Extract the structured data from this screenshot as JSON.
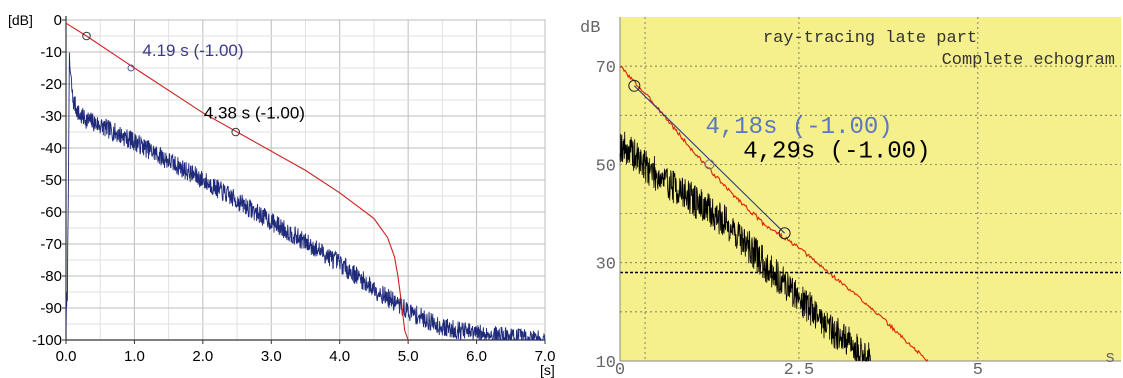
{
  "chart_data": [
    {
      "type": "line",
      "ylabel": "[dB]",
      "xlabel": "[s]",
      "xlim": [
        0,
        7
      ],
      "ylim": [
        -100,
        0
      ],
      "x_ticks": [
        "0.0",
        "1.0",
        "2.0",
        "3.0",
        "4.0",
        "5.0",
        "6.0",
        "7.0"
      ],
      "y_ticks": [
        "0",
        "-10",
        "-20",
        "-30",
        "-40",
        "-50",
        "-60",
        "-70",
        "-80",
        "-90",
        "-100"
      ],
      "grid": true,
      "series": [
        {
          "color": "#cc2222",
          "x": [
            0,
            0.3,
            1.0,
            2.0,
            2.5,
            3.5,
            4.0,
            4.5,
            4.7,
            4.8,
            4.85,
            4.9,
            4.95,
            5.0
          ],
          "y": [
            -1,
            -5,
            -15,
            -29,
            -35,
            -47,
            -54,
            -62,
            -68,
            -74,
            -80,
            -88,
            -97,
            -100
          ]
        },
        {
          "color": "#1f2a7a",
          "x": [
            0,
            0.02,
            0.05,
            0.1,
            0.2,
            0.5,
            1,
            2,
            3,
            4,
            4.5,
            5,
            5.5,
            6,
            6.5,
            7
          ],
          "y": [
            -95,
            -85,
            -13,
            -25,
            -30,
            -33,
            -38,
            -50,
            -63,
            -76,
            -84,
            -91,
            -96,
            -98,
            -99,
            -100
          ]
        }
      ],
      "markers": [
        {
          "x": 0.3,
          "y": -5
        },
        {
          "x": 0.95,
          "y": -15
        },
        {
          "x": 2.48,
          "y": -35
        }
      ],
      "annotations": [
        {
          "text": "4.19 s (-1.00)",
          "color": "#3a3a8a",
          "x": 1.0,
          "y": -10
        },
        {
          "text": "4.38 s (-1.00)",
          "color": "#000000",
          "x": 2.0,
          "y": -27
        }
      ]
    },
    {
      "type": "line",
      "ylabel": "dB",
      "xlabel": "s",
      "title": "ray-tracing late part",
      "subtitle": "Complete echogram",
      "background": "#f5ef8c",
      "xlim": [
        0,
        7
      ],
      "ylim": [
        10,
        80
      ],
      "x_ticks": [
        "0",
        "2.5",
        "5"
      ],
      "y_ticks": [
        "70",
        "50",
        "30",
        "10"
      ],
      "x_tick_values": [
        0,
        2.5,
        5
      ],
      "y_tick_values": [
        70,
        50,
        30,
        10
      ],
      "grid": true,
      "dashed_level": 28,
      "series": [
        {
          "color": "#dd2200",
          "x": [
            0,
            0.5,
            1.0,
            1.5,
            2.0,
            2.5,
            3.0,
            3.5,
            4.0,
            4.3
          ],
          "y": [
            70,
            62,
            53,
            45,
            38,
            33,
            27,
            21,
            14,
            10
          ]
        },
        {
          "color": "#000000",
          "x": [
            0,
            0.1,
            0.5,
            1.0,
            1.5,
            2.0,
            2.5,
            3.0,
            3.5
          ],
          "y": [
            54,
            53,
            48,
            43,
            38,
            30,
            23,
            16,
            10
          ]
        },
        {
          "color": "#2a3a8a",
          "x": [
            0.2,
            2.3
          ],
          "y": [
            66,
            36
          ]
        }
      ],
      "markers": [
        {
          "x": 0.2,
          "y": 66
        },
        {
          "x": 1.25,
          "y": 50
        },
        {
          "x": 2.3,
          "y": 36
        }
      ],
      "annotations": [
        {
          "text": "4,18s (-1.00)",
          "color": "#5a78c0",
          "x": 1.25,
          "y": 58
        },
        {
          "text": "4,29s (-1.00)",
          "color": "#000000",
          "x": 1.75,
          "y": 53
        }
      ]
    }
  ]
}
